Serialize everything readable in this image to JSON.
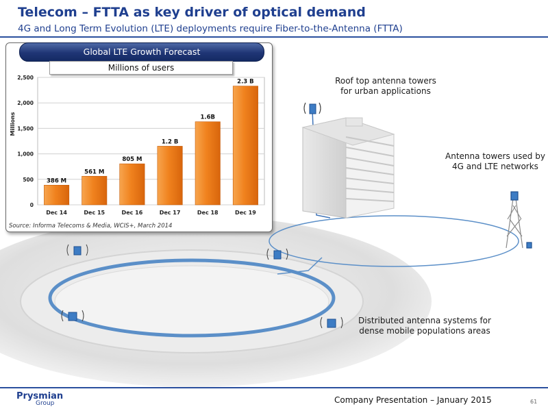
{
  "slide": {
    "title": "Telecom – FTTA as key driver of optical demand",
    "subtitle": "4G and Long Term Evolution (LTE) deployments require Fiber-to-the-Antenna (FTTA)"
  },
  "chart_data": {
    "type": "bar",
    "title": "Global LTE Growth Forecast",
    "subtitle": "Millions of users",
    "ylabel": "Millions",
    "xlabel": "",
    "categories": [
      "Dec 14",
      "Dec 15",
      "Dec 16",
      "Dec 17",
      "Dec 18",
      "Dec 19"
    ],
    "values": [
      386,
      561,
      805,
      1150,
      1630,
      2330
    ],
    "data_labels": [
      "386 M",
      "561 M",
      "805 M",
      "1.2 B",
      "1.6B",
      "2.3 B"
    ],
    "ylim": [
      0,
      2500
    ],
    "yticks": [
      0,
      500,
      1000,
      1500,
      2000,
      2500
    ],
    "ytick_labels": [
      "0",
      "500",
      "1,000",
      "1,500",
      "2,000",
      "2,500"
    ],
    "grid": true,
    "bar_color": "#f0821e",
    "source": "Source: Informa Telecoms & Media, WCIS+, March 2014"
  },
  "diagram": {
    "label_rooftop": "Roof top antenna towers for urban applications",
    "label_towers": "Antenna towers used by 4G and LTE networks",
    "label_das": "Distributed antenna systems for dense mobile populations areas",
    "fiber_color": "#5b8fc8"
  },
  "footer": {
    "company_line1": "Prysmian",
    "company_line2": "Group",
    "presentation": "Company Presentation – January 2015",
    "page": "61"
  }
}
